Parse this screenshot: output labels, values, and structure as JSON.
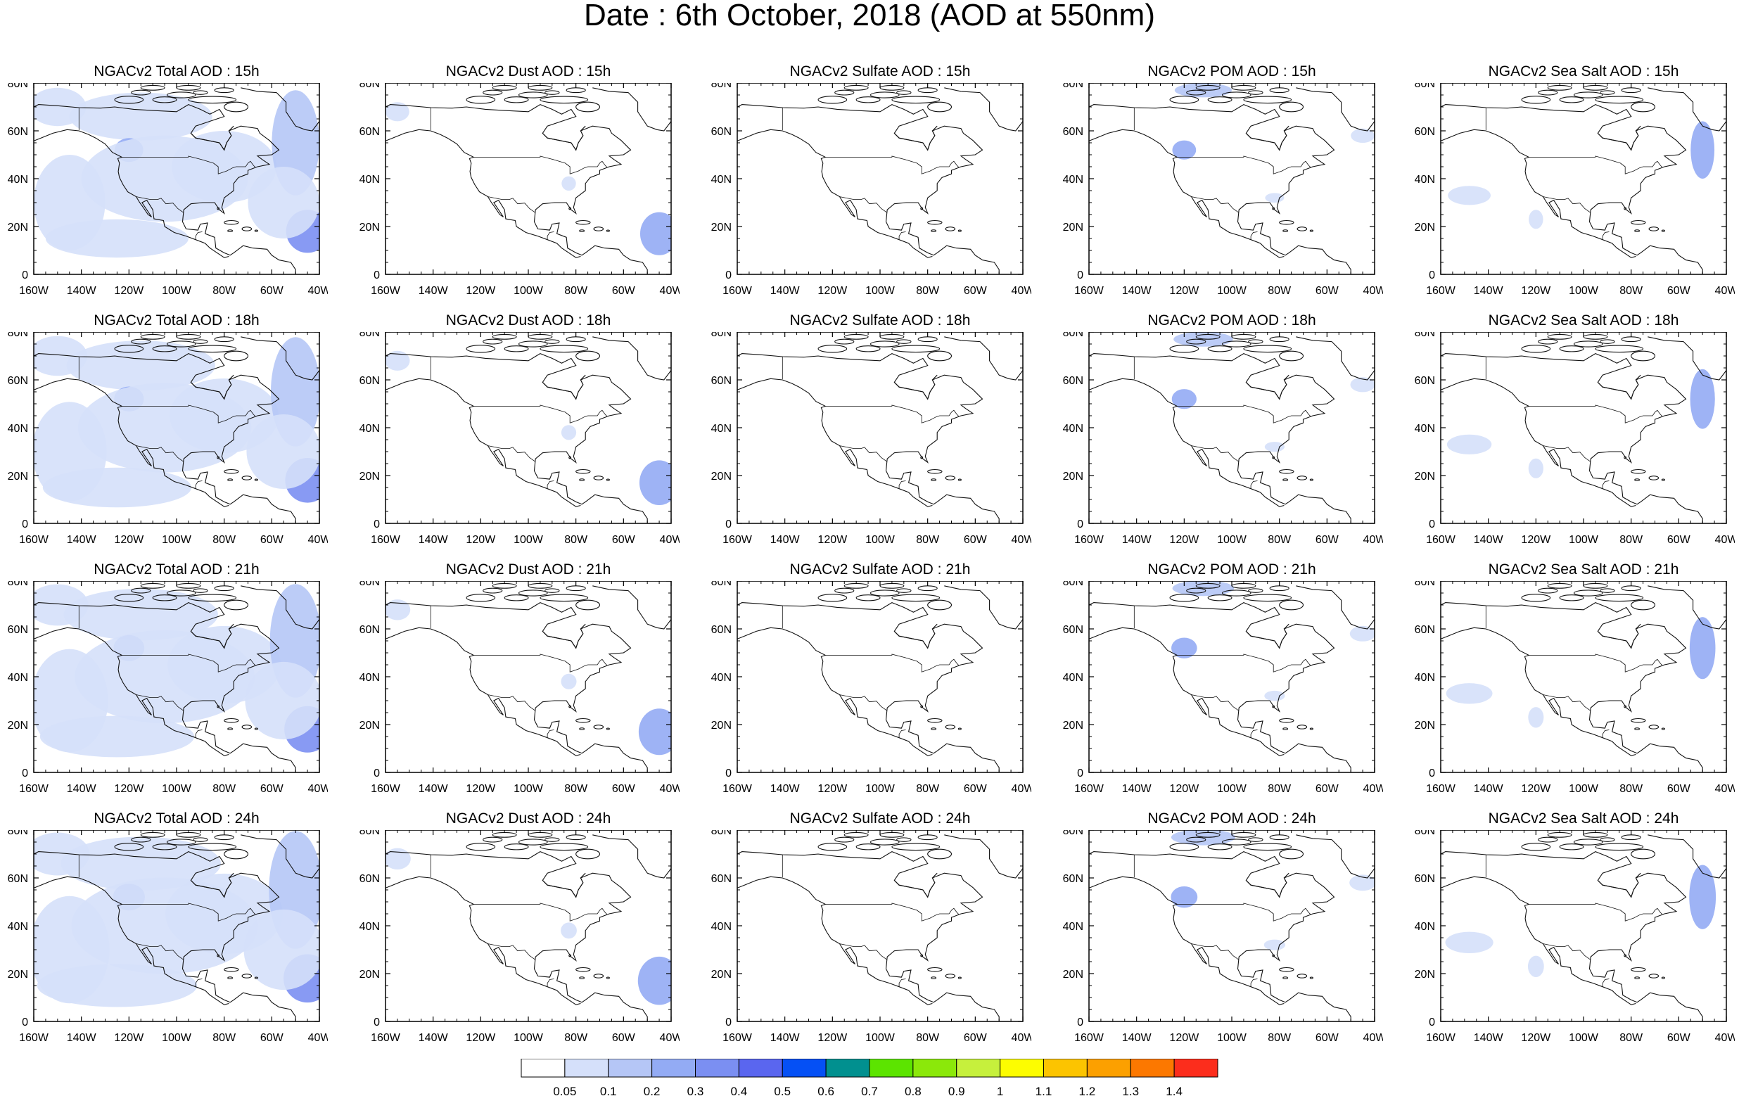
{
  "title": "Date : 6th October, 2018 (AOD at 550nm)",
  "map_extent": {
    "lon_min": -160,
    "lon_max": -40,
    "lat_min": 0,
    "lat_max": 80
  },
  "x_tick_labels": [
    "160W",
    "140W",
    "120W",
    "100W",
    "80W",
    "60W",
    "40W"
  ],
  "y_tick_labels": [
    "0",
    "20N",
    "40N",
    "60N",
    "80N"
  ],
  "rows": [
    {
      "hour": "15h",
      "panels": [
        {
          "title": "NGACv2 Total AOD : 15h",
          "species": "total"
        },
        {
          "title": "NGACv2 Dust AOD : 15h",
          "species": "dust"
        },
        {
          "title": "NGACv2 Sulfate AOD : 15h",
          "species": "sulfate"
        },
        {
          "title": "NGACv2 POM AOD : 15h",
          "species": "pom"
        },
        {
          "title": "NGACv2 Sea Salt AOD : 15h",
          "species": "seasalt"
        }
      ]
    },
    {
      "hour": "18h",
      "panels": [
        {
          "title": "NGACv2 Total AOD : 18h",
          "species": "total"
        },
        {
          "title": "NGACv2 Dust AOD : 18h",
          "species": "dust"
        },
        {
          "title": "NGACv2 Sulfate AOD : 18h",
          "species": "sulfate"
        },
        {
          "title": "NGACv2 POM AOD : 18h",
          "species": "pom"
        },
        {
          "title": "NGACv2 Sea Salt AOD : 18h",
          "species": "seasalt"
        }
      ]
    },
    {
      "hour": "21h",
      "panels": [
        {
          "title": "NGACv2 Total AOD : 21h",
          "species": "total"
        },
        {
          "title": "NGACv2 Dust AOD : 21h",
          "species": "dust"
        },
        {
          "title": "NGACv2 Sulfate AOD : 21h",
          "species": "sulfate"
        },
        {
          "title": "NGACv2 POM AOD : 21h",
          "species": "pom"
        },
        {
          "title": "NGACv2 Sea Salt AOD : 21h",
          "species": "seasalt"
        }
      ]
    },
    {
      "hour": "24h",
      "panels": [
        {
          "title": "NGACv2 Total AOD : 24h",
          "species": "total"
        },
        {
          "title": "NGACv2 Dust AOD : 24h",
          "species": "dust"
        },
        {
          "title": "NGACv2 Sulfate AOD : 24h",
          "species": "sulfate"
        },
        {
          "title": "NGACv2 POM AOD : 24h",
          "species": "pom"
        },
        {
          "title": "NGACv2 Sea Salt  AOD : 24h",
          "species": "seasalt"
        }
      ]
    }
  ],
  "colorbar": {
    "colors": [
      "#ffffff",
      "#d5e0fa",
      "#b5c6f6",
      "#93abf4",
      "#7b8ff2",
      "#5a66ef",
      "#0550f5",
      "#01908f",
      "#5ce400",
      "#8be80a",
      "#c6f03c",
      "#fdfd00",
      "#fcc400",
      "#fca000",
      "#fc7800",
      "#fc2d1c"
    ],
    "labels": [
      "0.05",
      "0.1",
      "0.2",
      "0.3",
      "0.4",
      "0.5",
      "0.6",
      "0.7",
      "0.8",
      "0.9",
      "1",
      "1.1",
      "1.2",
      "1.3",
      "1.4"
    ]
  },
  "aod_patches": {
    "total": [
      {
        "lon": -150,
        "lat": 70,
        "rx": 12,
        "ry": 8,
        "level": 1
      },
      {
        "lon": -115,
        "lat": 66,
        "rx": 30,
        "ry": 10,
        "level": 1
      },
      {
        "lon": -120,
        "lat": 52,
        "rx": 6,
        "ry": 5,
        "level": 3
      },
      {
        "lon": -105,
        "lat": 40,
        "rx": 35,
        "ry": 18,
        "level": 1
      },
      {
        "lon": -80,
        "lat": 45,
        "rx": 22,
        "ry": 15,
        "level": 1
      },
      {
        "lon": -50,
        "lat": 55,
        "rx": 10,
        "ry": 22,
        "level": 2
      },
      {
        "lon": -45,
        "lat": 18,
        "rx": 9,
        "ry": 9,
        "level": 4
      },
      {
        "lon": -55,
        "lat": 30,
        "rx": 15,
        "ry": 15,
        "level": 1
      },
      {
        "lon": -145,
        "lat": 30,
        "rx": 15,
        "ry": 20,
        "level": 1
      },
      {
        "lon": -125,
        "lat": 15,
        "rx": 30,
        "ry": 8,
        "level": 1
      }
    ],
    "dust": [
      {
        "lon": -45,
        "lat": 17,
        "rx": 8,
        "ry": 9,
        "level": 3
      },
      {
        "lon": -155,
        "lat": 68,
        "rx": 5,
        "ry": 4,
        "level": 1
      },
      {
        "lon": -83,
        "lat": 38,
        "rx": 3,
        "ry": 3,
        "level": 1
      }
    ],
    "sulfate": [],
    "pom": [
      {
        "lon": -120,
        "lat": 52,
        "rx": 5,
        "ry": 4,
        "level": 3
      },
      {
        "lon": -112,
        "lat": 77,
        "rx": 12,
        "ry": 3,
        "level": 2
      },
      {
        "lon": -45,
        "lat": 58,
        "rx": 5,
        "ry": 3,
        "level": 1
      },
      {
        "lon": -82,
        "lat": 32,
        "rx": 4,
        "ry": 2,
        "level": 1
      }
    ],
    "seasalt": [
      {
        "lon": -50,
        "lat": 52,
        "rx": 5,
        "ry": 12,
        "level": 3
      },
      {
        "lon": -148,
        "lat": 33,
        "rx": 9,
        "ry": 4,
        "level": 1
      },
      {
        "lon": -120,
        "lat": 23,
        "rx": 3,
        "ry": 4,
        "level": 1
      }
    ]
  }
}
